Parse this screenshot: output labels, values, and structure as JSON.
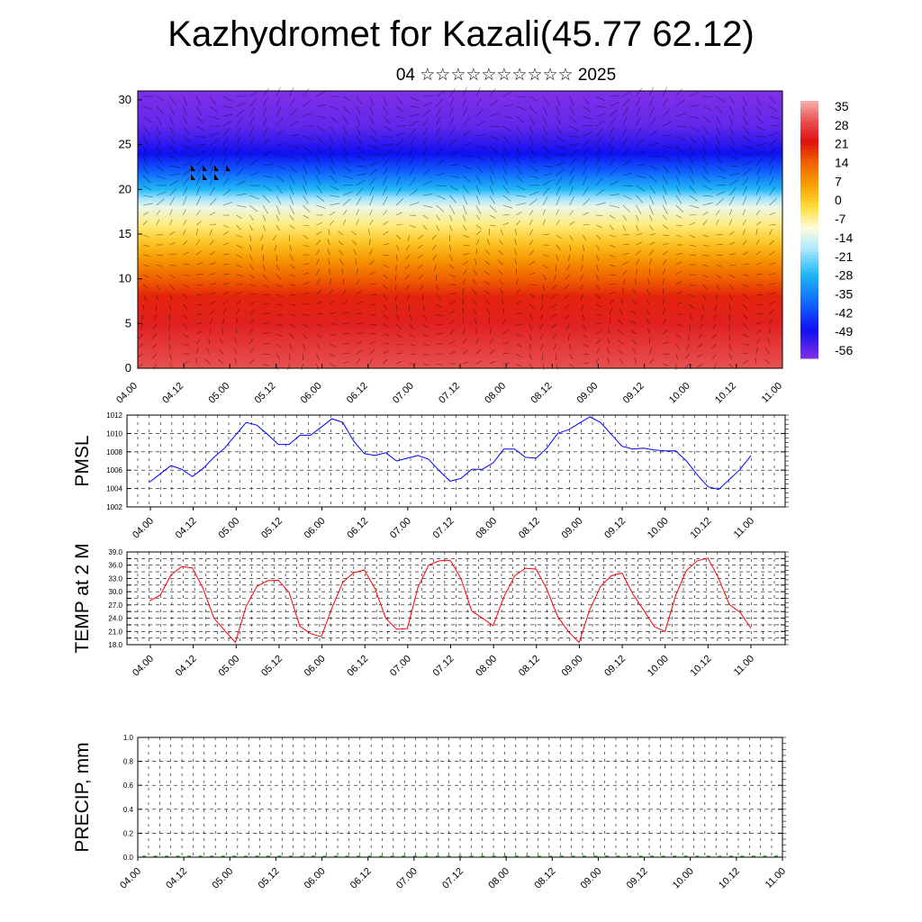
{
  "header": {
    "title": "Kazhydromet for Kazali(45.77 62.12)",
    "subtitle": "04 ☆☆☆☆☆☆☆☆☆☆ 2025"
  },
  "chart_data": [
    {
      "type": "heatmap",
      "name": "vertical-cross-section",
      "x_tick_labels": [
        "04.00",
        "04.12",
        "05.00",
        "05.12",
        "06.00",
        "06.12",
        "07.00",
        "07.12",
        "08.00",
        "08.12",
        "09.00",
        "09.12",
        "10.00",
        "10.12",
        "11.00"
      ],
      "y_ticks": [
        0,
        5,
        10,
        15,
        20,
        25,
        30
      ],
      "ylim": [
        0,
        31
      ],
      "colorbar": {
        "labels": [
          "35",
          "28",
          "21",
          "14",
          "7",
          "0",
          "-7",
          "-14",
          "-21",
          "-28",
          "-35",
          "-42",
          "-49",
          "-56"
        ],
        "range": [
          -63,
          38
        ],
        "stops": [
          {
            "value": 38,
            "color": "#f4b2b2"
          },
          {
            "value": 30,
            "color": "#e85050"
          },
          {
            "value": 22,
            "color": "#e01010"
          },
          {
            "value": 14,
            "color": "#f06000"
          },
          {
            "value": 5,
            "color": "#f8a000"
          },
          {
            "value": -4,
            "color": "#ffe040"
          },
          {
            "value": -12,
            "color": "#fffce0"
          },
          {
            "value": -20,
            "color": "#b0e8ff"
          },
          {
            "value": -30,
            "color": "#20b8f8"
          },
          {
            "value": -42,
            "color": "#1060ff"
          },
          {
            "value": -52,
            "color": "#1010f0"
          },
          {
            "value": -63,
            "color": "#8030e8"
          }
        ]
      },
      "profile": [
        {
          "level": 0,
          "value": 30
        },
        {
          "level": 5,
          "value": 24
        },
        {
          "level": 8,
          "value": 20
        },
        {
          "level": 10,
          "value": 14
        },
        {
          "level": 12,
          "value": 7
        },
        {
          "level": 14,
          "value": 0
        },
        {
          "level": 16,
          "value": -7
        },
        {
          "level": 18,
          "value": -14
        },
        {
          "level": 19,
          "value": -21
        },
        {
          "level": 20,
          "value": -30
        },
        {
          "level": 22,
          "value": -42
        },
        {
          "level": 24,
          "value": -52
        },
        {
          "level": 25.5,
          "value": -56
        },
        {
          "level": 27,
          "value": -60
        },
        {
          "level": 31,
          "value": -63
        }
      ]
    },
    {
      "type": "line",
      "name": "PMSL",
      "ylabel": "PMSL",
      "x_tick_labels": [
        "04.00",
        "04.12",
        "05.00",
        "05.12",
        "06.00",
        "06.12",
        "07.00",
        "07.12",
        "08.00",
        "08.12",
        "09.00",
        "09.12",
        "10.00",
        "10.12",
        "11.00"
      ],
      "y_ticks": [
        "1002",
        "1004",
        "1006",
        "1008",
        "1010",
        "1012"
      ],
      "ylim": [
        1002,
        1012
      ],
      "color": "#0000ff",
      "values": [
        1004.7,
        1005.6,
        1006.5,
        1006.1,
        1005.3,
        1006.2,
        1007.4,
        1008.4,
        1009.8,
        1011.2,
        1010.9,
        1009.9,
        1008.8,
        1008.8,
        1009.8,
        1009.8,
        1010.7,
        1011.6,
        1011.2,
        1009.2,
        1007.8,
        1007.6,
        1007.9,
        1007.0,
        1007.3,
        1007.6,
        1007.2,
        1005.9,
        1004.8,
        1005.1,
        1006.1,
        1006.1,
        1006.8,
        1008.3,
        1008.3,
        1007.4,
        1007.3,
        1008.4,
        1010.0,
        1010.4,
        1011.1,
        1011.8,
        1011.2,
        1009.9,
        1008.6,
        1008.3,
        1008.4,
        1008.2,
        1008.1,
        1008.1,
        1007.0,
        1005.5,
        1004.2,
        1003.9,
        1005.0,
        1006.1,
        1007.6
      ]
    },
    {
      "type": "line",
      "name": "TEMP at 2 M",
      "ylabel": "TEMP at 2 M",
      "x_tick_labels": [
        "04.00",
        "04.12",
        "05.00",
        "05.12",
        "06.00",
        "06.12",
        "07.00",
        "07.12",
        "08.00",
        "08.12",
        "09.00",
        "09.12",
        "10.00",
        "10.12",
        "11.00"
      ],
      "y_ticks": [
        "18.0",
        "19.5",
        "21.0",
        "22.5",
        "24.0",
        "25.5",
        "27.0",
        "28.5",
        "30.0",
        "31.5",
        "33.0",
        "34.5",
        "36.0",
        "37.5",
        "39.0"
      ],
      "y_tick_labels": [
        "18.0",
        "21.0",
        "24.0",
        "27.0",
        "30.0",
        "33.0",
        "36.0",
        "39.0"
      ],
      "ylim": [
        18,
        39
      ],
      "color": "#ff0000",
      "values": [
        27.9,
        29.2,
        33.8,
        35.7,
        35.4,
        30.7,
        24.0,
        21.2,
        18.5,
        26.7,
        31.2,
        32.5,
        32.6,
        29.8,
        22.2,
        20.5,
        19.8,
        26.4,
        32.1,
        34.3,
        34.9,
        30.7,
        24.0,
        21.5,
        21.6,
        31.0,
        36.0,
        37.0,
        37.1,
        33.0,
        25.6,
        24.0,
        22.3,
        28.8,
        33.6,
        35.3,
        35.1,
        30.5,
        24.4,
        21.0,
        18.5,
        26.0,
        31.2,
        33.6,
        34.2,
        29.5,
        25.9,
        22.1,
        21.0,
        29.2,
        34.8,
        37.0,
        37.6,
        33.0,
        27.1,
        25.3,
        21.7
      ]
    },
    {
      "type": "bar",
      "name": "PRECIP",
      "ylabel": "PRECIP, mm",
      "x_tick_labels": [
        "04.00",
        "04.12",
        "05.00",
        "05.12",
        "06.00",
        "06.12",
        "07.00",
        "07.12",
        "08.00",
        "08.12",
        "09.00",
        "09.12",
        "10.00",
        "10.12",
        "11.00"
      ],
      "y_ticks": [
        "0.0",
        "0.2",
        "0.4",
        "0.6",
        "0.8",
        "1.0"
      ],
      "ylim": [
        0,
        1
      ],
      "color": "#006400",
      "values": [
        0,
        0,
        0,
        0,
        0,
        0,
        0,
        0,
        0,
        0,
        0,
        0,
        0,
        0,
        0,
        0,
        0,
        0,
        0,
        0,
        0,
        0,
        0,
        0,
        0,
        0,
        0,
        0,
        0,
        0,
        0,
        0,
        0,
        0,
        0,
        0,
        0,
        0,
        0,
        0,
        0,
        0,
        0,
        0,
        0,
        0,
        0,
        0,
        0,
        0,
        0,
        0,
        0,
        0,
        0,
        0,
        0
      ]
    }
  ]
}
